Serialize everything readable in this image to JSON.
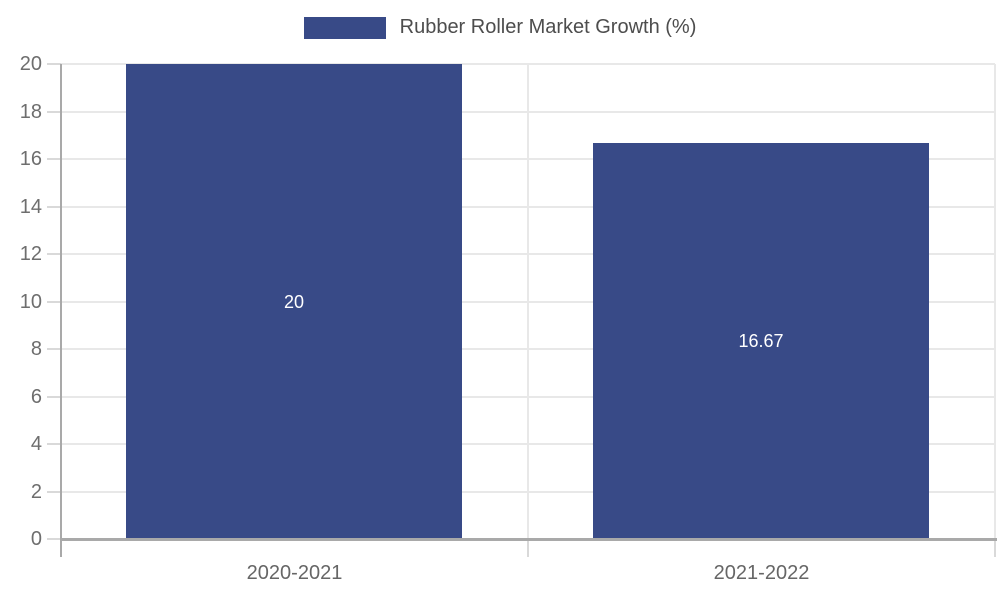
{
  "chart_data": {
    "type": "bar",
    "categories": [
      "2020-2021",
      "2021-2022"
    ],
    "series": [
      {
        "name": "Rubber Roller Market Growth (%)",
        "values": [
          20,
          16.67
        ],
        "labels": [
          "20",
          "16.67"
        ],
        "color": "#384A87"
      }
    ],
    "title": "",
    "xlabel": "",
    "ylabel": "",
    "ylim": [
      0,
      20
    ],
    "ytick_step": 2,
    "ytick_labels": [
      "0",
      "2",
      "4",
      "6",
      "8",
      "10",
      "12",
      "14",
      "16",
      "18",
      "20"
    ],
    "grid": true,
    "legend_position": "top-center",
    "bar_label_color": "#ffffff"
  }
}
